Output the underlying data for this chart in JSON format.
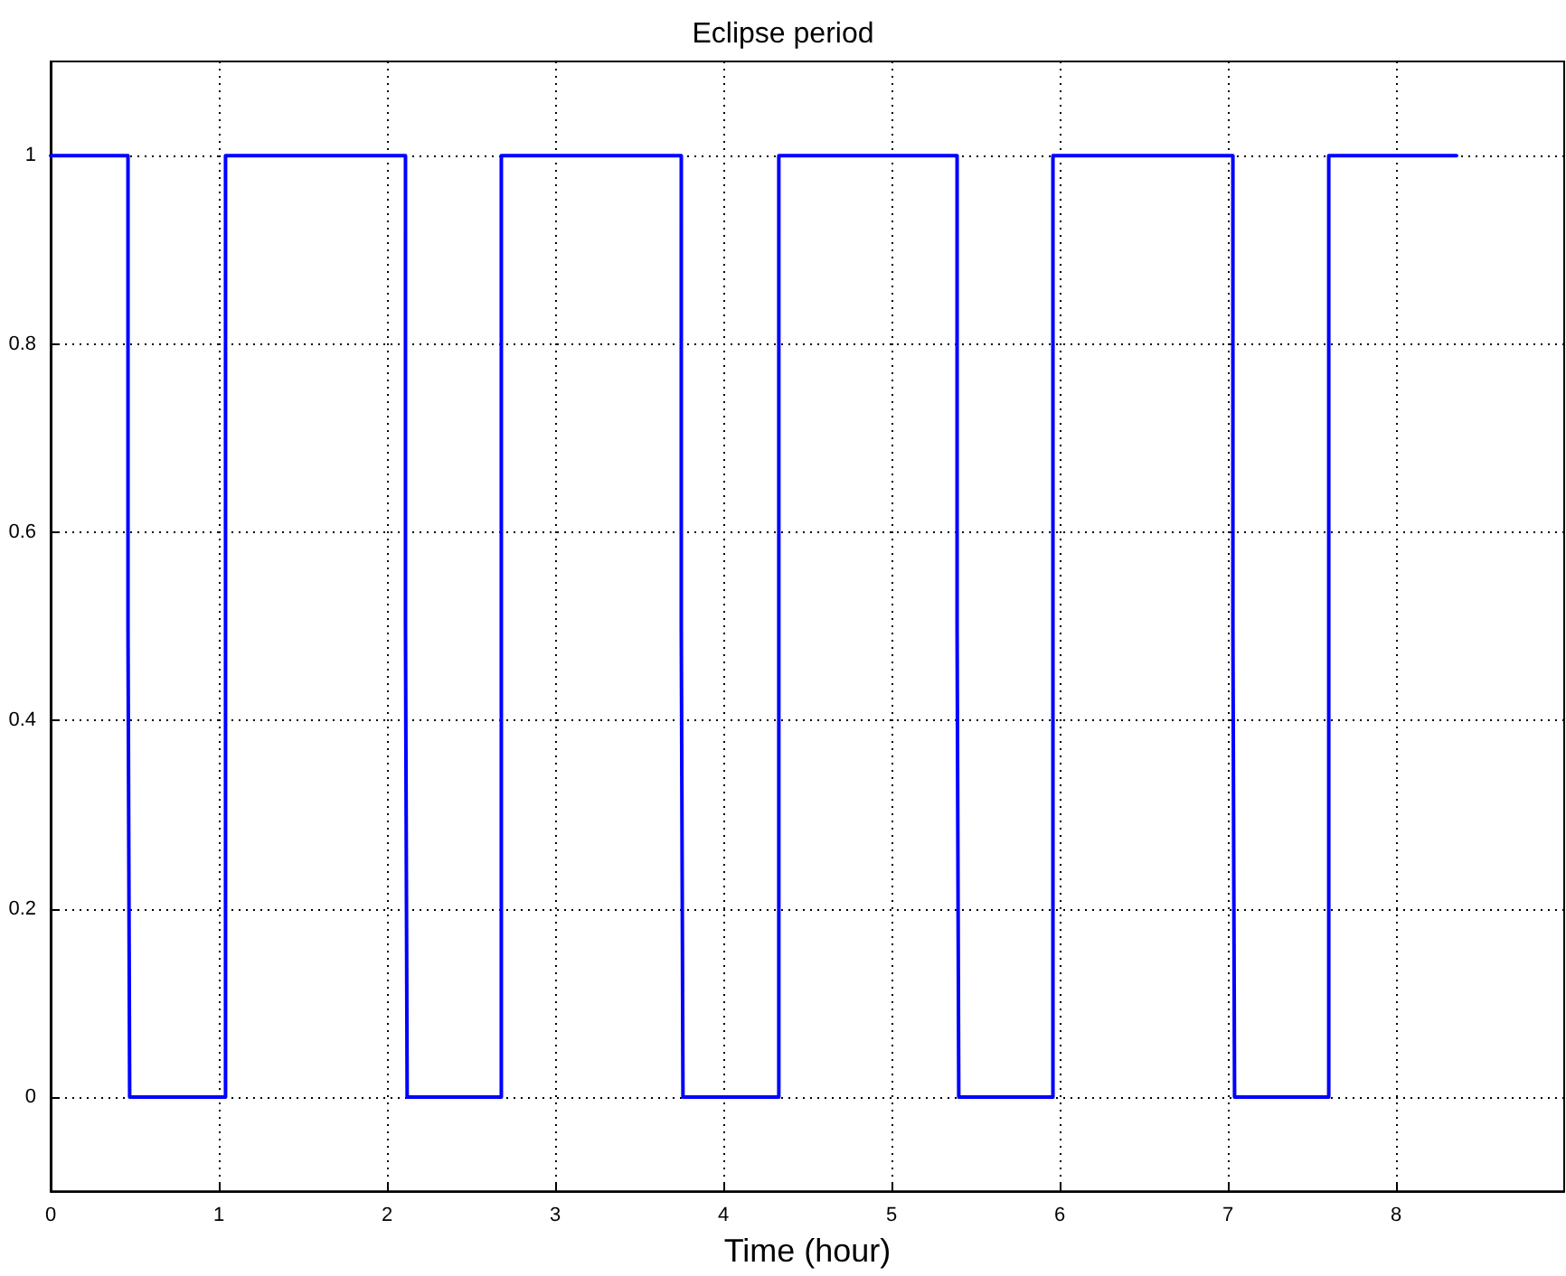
{
  "chart_data": {
    "type": "line",
    "title": "Eclipse period",
    "xlabel": "Time (hour)",
    "series": [
      {
        "color": "#0000ff",
        "x": [
          0,
          0.46,
          0.46,
          0.47,
          1.04,
          1.04,
          2.11,
          2.11,
          2.12,
          2.68,
          2.68,
          3.75,
          3.75,
          3.76,
          4.33,
          4.33,
          5.39,
          5.39,
          5.4,
          5.96,
          5.96,
          7.03,
          7.03,
          7.04,
          7.6,
          7.6,
          8.36
        ],
        "values": [
          1,
          1,
          0.5,
          0,
          0,
          1,
          1,
          0.5,
          0,
          0,
          1,
          1,
          0.5,
          0,
          0,
          1,
          1,
          0.5,
          0,
          0,
          1,
          1,
          0.5,
          0,
          0,
          1,
          1
        ]
      }
    ],
    "xlim": [
      0,
      9
    ],
    "xticks": [
      0,
      1,
      2,
      3,
      4,
      5,
      6,
      7,
      8
    ],
    "ylim": [
      -0.1,
      1.1
    ],
    "yticks": [
      0,
      0.2,
      0.4,
      0.6,
      0.8,
      1
    ],
    "grid": true,
    "marker": "none",
    "line_style": "solid"
  }
}
